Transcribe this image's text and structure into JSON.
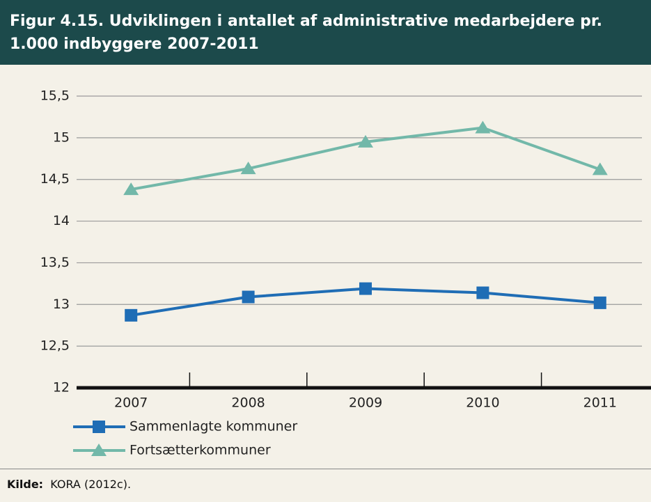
{
  "chart_data": {
    "type": "line",
    "title": "Figur 4.15. Udviklingen i antallet af administrative medarbejdere pr. 1.000 indbyggere 2007-2011",
    "categories": [
      "2007",
      "2008",
      "2009",
      "2010",
      "2011"
    ],
    "series": [
      {
        "name": "Sammenlagte kommuner",
        "color": "#1f6db5",
        "marker": "square",
        "values": [
          12.87,
          13.09,
          13.19,
          13.14,
          13.02
        ]
      },
      {
        "name": "Fortsætterkommuner",
        "color": "#72b8a9",
        "marker": "triangle",
        "values": [
          14.38,
          14.63,
          14.95,
          15.12,
          14.62
        ]
      }
    ],
    "ylim": [
      12,
      15.5
    ],
    "yticks": [
      12,
      {
        "value": 12.5,
        "label": "12,5"
      },
      13,
      {
        "value": 13.5,
        "label": "13,5"
      },
      14,
      {
        "value": 14.5,
        "label": "14,5"
      },
      15,
      {
        "value": 15.5,
        "label": "15,5"
      }
    ],
    "grid": true,
    "legend": "bottom-left",
    "source_label": "Kilde:",
    "source": "KORA (2012c)."
  }
}
